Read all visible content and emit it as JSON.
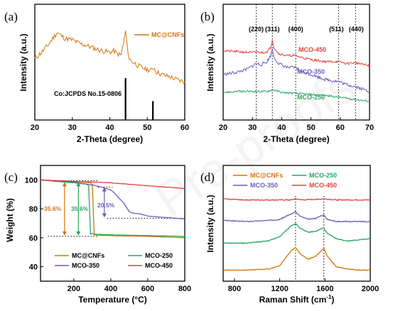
{
  "watermark": "Pre-proofs",
  "chart_data": [
    {
      "panel": "(a)",
      "type": "line",
      "xlabel": "2-Theta (degree)",
      "ylabel": "Intensity (a.u.)",
      "xlim": [
        20,
        60
      ],
      "xticks": [
        20,
        30,
        40,
        50,
        60
      ],
      "series": [
        {
          "name": "MC@CNFs",
          "color": "#d2750c",
          "x": [
            20,
            22,
            24,
            25,
            26,
            27,
            28,
            30,
            32,
            34,
            36,
            38,
            40,
            41,
            42,
            43,
            43.6,
            44.2,
            44.6,
            45.2,
            46,
            48,
            50,
            51,
            51.7,
            52.4,
            54,
            56,
            58,
            60
          ],
          "y": [
            62,
            72,
            84,
            92,
            98,
            94,
            90,
            88,
            83,
            80,
            76,
            73,
            71,
            73,
            69,
            67,
            82,
            100,
            80,
            62,
            58,
            51,
            47,
            46,
            50,
            44,
            40,
            37,
            33,
            30
          ]
        }
      ],
      "reference": {
        "label": "Co:JCPDS No.15-0806",
        "x": [
          44.2,
          51.5
        ],
        "y": [
          100,
          45
        ]
      }
    },
    {
      "panel": "(b)",
      "type": "line",
      "xlabel": "2-Theta (degree)",
      "ylabel": "Intensity (a.u.)",
      "xlim": [
        20,
        70
      ],
      "xticks": [
        20,
        30,
        40,
        50,
        60,
        70
      ],
      "peaks": [
        {
          "label": "(220)",
          "x": 31.3
        },
        {
          "label": "(311)",
          "x": 36.8
        },
        {
          "label": "(400)",
          "x": 44.8
        },
        {
          "label": "(511)",
          "x": 59.4
        },
        {
          "label": "(440)",
          "x": 65.2
        }
      ],
      "series": [
        {
          "name": "MCO-450",
          "color": "#e83c3c",
          "x": [
            20,
            25,
            30,
            31.3,
            33,
            35,
            36.2,
            36.8,
            37.4,
            39,
            42,
            44.8,
            47,
            50,
            55,
            59.4,
            62,
            65.2,
            68,
            70
          ],
          "y": [
            69,
            68,
            67,
            68,
            67,
            68,
            72,
            80,
            72,
            66,
            64,
            64,
            62,
            60,
            58,
            58,
            56,
            57,
            55,
            54
          ]
        },
        {
          "name": "MCO-350",
          "color": "#6a5fbd",
          "x": [
            20,
            24,
            28,
            31.3,
            33,
            35,
            36.2,
            36.8,
            37.4,
            39,
            42,
            44.8,
            47,
            50,
            55,
            59.4,
            62,
            65.2,
            68,
            70
          ],
          "y": [
            45,
            47,
            50,
            56,
            55,
            58,
            64,
            71,
            62,
            56,
            52,
            52,
            48,
            45,
            40,
            38,
            35,
            33,
            30,
            28
          ]
        },
        {
          "name": "MCO-250",
          "color": "#2aa662",
          "x": [
            20,
            25,
            30,
            35,
            36.8,
            40,
            45,
            50,
            55,
            60,
            65,
            70
          ],
          "y": [
            27,
            28,
            28,
            28,
            30,
            27,
            26,
            25,
            24,
            22,
            20,
            18
          ]
        }
      ]
    },
    {
      "panel": "(c)",
      "type": "line",
      "xlabel": "Temperature (°C)",
      "ylabel": "Weight  (%)",
      "xlim": [
        20,
        800
      ],
      "ylim": [
        30,
        110
      ],
      "xticks": [
        200,
        400,
        600,
        800
      ],
      "yticks": [
        40,
        60,
        80,
        100
      ],
      "annotations": [
        "35.6%",
        "35.6%",
        "20.5%"
      ],
      "series": [
        {
          "name": "MC@CNFs",
          "color": "#d2750c",
          "x": [
            20,
            100,
            200,
            250,
            290,
            300,
            305,
            310,
            400,
            600,
            800
          ],
          "y": [
            100,
            99.5,
            99,
            98.5,
            98,
            97,
            80,
            62,
            61.5,
            61,
            60
          ]
        },
        {
          "name": "MCO-250",
          "color": "#2aa662",
          "x": [
            20,
            100,
            200,
            270,
            280,
            285,
            290,
            300,
            310,
            400,
            600,
            800
          ],
          "y": [
            100,
            99,
            98,
            97,
            96,
            80,
            62.5,
            63,
            62.5,
            62,
            61.5,
            61
          ]
        },
        {
          "name": "MCO-350",
          "color": "#6a5fbd",
          "x": [
            20,
            100,
            200,
            300,
            350,
            400,
            420,
            440,
            470,
            500,
            520,
            560,
            600,
            700,
            800
          ],
          "y": [
            100,
            99.5,
            98.5,
            96.5,
            95,
            93,
            91,
            88,
            84,
            78,
            77,
            76.5,
            75,
            74,
            73
          ]
        },
        {
          "name": "MCO-450",
          "color": "#e83c3c",
          "x": [
            20,
            100,
            200,
            300,
            400,
            500,
            600,
            700,
            800
          ],
          "y": [
            100,
            99.5,
            99,
            98.5,
            98,
            97,
            96,
            95,
            94
          ]
        }
      ]
    },
    {
      "panel": "(d)",
      "type": "line",
      "xlabel": "Raman Shift (cm",
      "xlabel_sup": "-1",
      "xlabel_tail": ")",
      "ylabel": "Intensity (a.u.)",
      "xlim": [
        700,
        2000
      ],
      "xticks": [
        800,
        1200,
        1600,
        2000
      ],
      "bands": [
        1340,
        1590
      ],
      "series": [
        {
          "name": "MC@CNFs",
          "color": "#d2750c",
          "x": [
            700,
            900,
            1100,
            1200,
            1300,
            1340,
            1380,
            1450,
            1520,
            1560,
            1590,
            1620,
            1700,
            1800,
            1900,
            2000
          ],
          "y": [
            5,
            5,
            6,
            9,
            23,
            26,
            20,
            15,
            18,
            22,
            25,
            18,
            8,
            6,
            5,
            5
          ]
        },
        {
          "name": "MCO-250",
          "color": "#2aa662",
          "x": [
            700,
            900,
            1100,
            1200,
            1300,
            1340,
            1380,
            1450,
            1520,
            1560,
            1590,
            1620,
            1700,
            1800,
            1900,
            2000
          ],
          "y": [
            30,
            30,
            32,
            36,
            46,
            48,
            44,
            40,
            41,
            43,
            44,
            39,
            34,
            32,
            33,
            34
          ]
        },
        {
          "name": "MCO-350",
          "color": "#6a5fbd",
          "x": [
            700,
            900,
            1100,
            1200,
            1300,
            1340,
            1380,
            1450,
            1520,
            1560,
            1590,
            1620,
            1700,
            1800,
            1900,
            2000
          ],
          "y": [
            51,
            50,
            51,
            52,
            57,
            59,
            55,
            52,
            53,
            55,
            56,
            52,
            50,
            50,
            50,
            50
          ]
        },
        {
          "name": "MCO-450",
          "color": "#e83c3c",
          "x": [
            700,
            900,
            1100,
            1300,
            1340,
            1400,
            1590,
            1700,
            1900,
            2000
          ],
          "y": [
            71,
            70,
            70,
            70,
            71,
            70,
            71,
            70,
            70,
            70
          ]
        }
      ]
    }
  ]
}
